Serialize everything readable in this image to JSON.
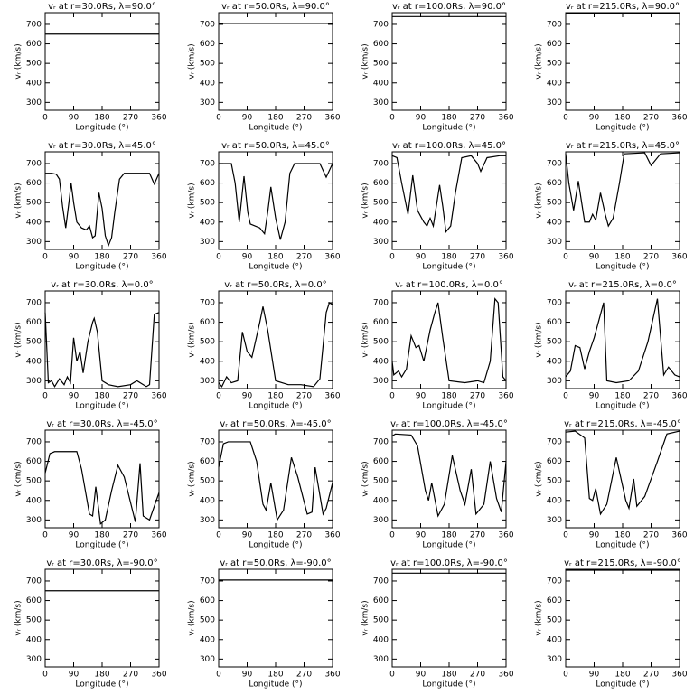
{
  "chart_data": [
    {
      "type": "line",
      "title": "vᵣ at r=30.0Rs, λ=90.0°",
      "xlabel": "Longitude (°)",
      "ylabel": "vᵣ (km/s)",
      "x": [
        0,
        360
      ],
      "values": [
        650,
        650
      ],
      "color": "#000000",
      "xlim": [
        0,
        360
      ],
      "ylim": [
        260,
        760
      ],
      "xticks": [
        0,
        90,
        180,
        270,
        360
      ],
      "yticks": [
        300,
        400,
        500,
        600,
        700
      ]
    },
    {
      "type": "line",
      "title": "vᵣ at r=50.0Rs, λ=90.0°",
      "xlabel": "Longitude (°)",
      "ylabel": "vᵣ (km/s)",
      "x": [
        0,
        360
      ],
      "values": [
        705,
        705
      ],
      "color": "#000000",
      "xlim": [
        0,
        360
      ],
      "ylim": [
        260,
        760
      ],
      "xticks": [
        0,
        90,
        180,
        270,
        360
      ],
      "yticks": [
        300,
        400,
        500,
        600,
        700
      ]
    },
    {
      "type": "line",
      "title": "vᵣ at r=100.0Rs, λ=90.0°",
      "xlabel": "Longitude (°)",
      "ylabel": "vᵣ (km/s)",
      "x": [
        0,
        360
      ],
      "values": [
        740,
        740
      ],
      "color": "#000000",
      "xlim": [
        0,
        360
      ],
      "ylim": [
        260,
        760
      ],
      "xticks": [
        0,
        90,
        180,
        270,
        360
      ],
      "yticks": [
        300,
        400,
        500,
        600,
        700
      ]
    },
    {
      "type": "line",
      "title": "vᵣ at r=215.0Rs, λ=90.0°",
      "xlabel": "Longitude (°)",
      "ylabel": "vᵣ (km/s)",
      "x": [
        0,
        360
      ],
      "values": [
        755,
        755
      ],
      "color": "#000000",
      "xlim": [
        0,
        360
      ],
      "ylim": [
        260,
        760
      ],
      "xticks": [
        0,
        90,
        180,
        270,
        360
      ],
      "yticks": [
        300,
        400,
        500,
        600,
        700
      ]
    },
    {
      "type": "line",
      "title": "vᵣ at r=30.0Rs, λ=45.0°",
      "xlabel": "Longitude (°)",
      "ylabel": "vᵣ (km/s)",
      "x": [
        0,
        20,
        35,
        45,
        55,
        65,
        75,
        82,
        90,
        100,
        115,
        130,
        140,
        150,
        158,
        170,
        180,
        190,
        200,
        210,
        220,
        235,
        250,
        300,
        330,
        345,
        360
      ],
      "values": [
        650,
        650,
        645,
        620,
        480,
        370,
        500,
        600,
        500,
        400,
        370,
        360,
        380,
        320,
        330,
        550,
        470,
        330,
        280,
        320,
        450,
        620,
        650,
        650,
        650,
        595,
        650
      ],
      "color": "#000000",
      "xlim": [
        0,
        360
      ],
      "ylim": [
        260,
        760
      ],
      "xticks": [
        0,
        90,
        180,
        270,
        360
      ],
      "yticks": [
        300,
        400,
        500,
        600,
        700
      ]
    },
    {
      "type": "line",
      "title": "vᵣ at r=50.0Rs, λ=45.0°",
      "xlabel": "Longitude (°)",
      "ylabel": "vᵣ (km/s)",
      "x": [
        0,
        40,
        52,
        65,
        80,
        92,
        100,
        115,
        130,
        145,
        155,
        165,
        180,
        195,
        210,
        225,
        240,
        320,
        340,
        360
      ],
      "values": [
        700,
        700,
        600,
        400,
        635,
        450,
        390,
        380,
        370,
        340,
        450,
        580,
        420,
        310,
        400,
        650,
        700,
        700,
        630,
        700
      ],
      "color": "#000000",
      "xlim": [
        0,
        360
      ],
      "ylim": [
        260,
        760
      ],
      "xticks": [
        0,
        90,
        180,
        270,
        360
      ],
      "yticks": [
        300,
        400,
        500,
        600,
        700
      ]
    },
    {
      "type": "line",
      "title": "vᵣ at r=100.0Rs, λ=45.0°",
      "xlabel": "Longitude (°)",
      "ylabel": "vᵣ (km/s)",
      "x": [
        0,
        15,
        30,
        50,
        65,
        80,
        100,
        110,
        120,
        130,
        150,
        160,
        170,
        185,
        200,
        220,
        250,
        270,
        280,
        300,
        340,
        360
      ],
      "values": [
        740,
        730,
        600,
        440,
        640,
        460,
        400,
        380,
        420,
        380,
        590,
        480,
        350,
        380,
        550,
        730,
        740,
        700,
        660,
        730,
        740,
        740
      ],
      "color": "#000000",
      "xlim": [
        0,
        360
      ],
      "ylim": [
        260,
        760
      ],
      "xticks": [
        0,
        90,
        180,
        270,
        360
      ],
      "yticks": [
        300,
        400,
        500,
        600,
        700
      ]
    },
    {
      "type": "line",
      "title": "vᵣ at r=215.0Rs, λ=45.0°",
      "xlabel": "Longitude (°)",
      "ylabel": "vᵣ (km/s)",
      "x": [
        0,
        10,
        25,
        40,
        60,
        75,
        85,
        95,
        110,
        125,
        135,
        150,
        170,
        185,
        250,
        270,
        300,
        360
      ],
      "values": [
        750,
        600,
        460,
        610,
        400,
        400,
        440,
        410,
        550,
        440,
        380,
        420,
        600,
        750,
        755,
        690,
        750,
        755
      ],
      "color": "#000000",
      "xlim": [
        0,
        360
      ],
      "ylim": [
        260,
        760
      ],
      "xticks": [
        0,
        90,
        180,
        270,
        360
      ],
      "yticks": [
        300,
        400,
        500,
        600,
        700
      ]
    },
    {
      "type": "line",
      "title": "vᵣ at r=30.0Rs, λ=0.0°",
      "xlabel": "Longitude (°)",
      "ylabel": "vᵣ (km/s)",
      "x": [
        0,
        10,
        20,
        30,
        45,
        60,
        70,
        80,
        90,
        100,
        110,
        120,
        135,
        150,
        155,
        165,
        180,
        200,
        230,
        270,
        290,
        320,
        330,
        345,
        360
      ],
      "values": [
        650,
        290,
        300,
        270,
        310,
        280,
        320,
        290,
        520,
        400,
        450,
        340,
        500,
        600,
        620,
        550,
        300,
        280,
        270,
        280,
        300,
        270,
        280,
        640,
        650
      ],
      "color": "#000000",
      "xlim": [
        0,
        360
      ],
      "ylim": [
        260,
        760
      ],
      "xticks": [
        0,
        90,
        180,
        270,
        360
      ],
      "yticks": [
        300,
        400,
        500,
        600,
        700
      ]
    },
    {
      "type": "line",
      "title": "vᵣ at r=50.0Rs, λ=0.0°",
      "xlabel": "Longitude (°)",
      "ylabel": "vᵣ (km/s)",
      "x": [
        0,
        10,
        25,
        40,
        60,
        75,
        90,
        105,
        130,
        140,
        155,
        180,
        220,
        260,
        300,
        320,
        340,
        350,
        360
      ],
      "values": [
        290,
        270,
        320,
        290,
        300,
        550,
        450,
        420,
        600,
        680,
        560,
        300,
        280,
        280,
        270,
        310,
        650,
        700,
        690
      ],
      "color": "#000000",
      "xlim": [
        0,
        360
      ],
      "ylim": [
        260,
        760
      ],
      "xticks": [
        0,
        90,
        180,
        270,
        360
      ],
      "yticks": [
        300,
        400,
        500,
        600,
        700
      ]
    },
    {
      "type": "line",
      "title": "vᵣ at r=100.0Rs, λ=0.0°",
      "xlabel": "Longitude (°)",
      "ylabel": "vᵣ (km/s)",
      "x": [
        0,
        5,
        20,
        30,
        45,
        60,
        75,
        85,
        100,
        120,
        135,
        145,
        160,
        180,
        230,
        270,
        290,
        310,
        325,
        335,
        350,
        360
      ],
      "values": [
        400,
        330,
        350,
        320,
        360,
        530,
        470,
        480,
        400,
        560,
        650,
        700,
        520,
        300,
        290,
        300,
        290,
        400,
        720,
        700,
        320,
        300
      ],
      "color": "#000000",
      "xlim": [
        0,
        360
      ],
      "ylim": [
        260,
        760
      ],
      "xticks": [
        0,
        90,
        180,
        270,
        360
      ],
      "yticks": [
        300,
        400,
        500,
        600,
        700
      ]
    },
    {
      "type": "line",
      "title": "vᵣ at r=215.0Rs, λ=0.0°",
      "xlabel": "Longitude (°)",
      "ylabel": "vᵣ (km/s)",
      "x": [
        0,
        15,
        30,
        45,
        60,
        75,
        90,
        110,
        120,
        130,
        160,
        200,
        230,
        260,
        290,
        310,
        325,
        345,
        360
      ],
      "values": [
        320,
        350,
        480,
        470,
        360,
        450,
        520,
        640,
        700,
        300,
        290,
        300,
        350,
        500,
        720,
        330,
        370,
        330,
        320
      ],
      "color": "#000000",
      "xlim": [
        0,
        360
      ],
      "ylim": [
        260,
        760
      ],
      "xticks": [
        0,
        90,
        180,
        270,
        360
      ],
      "yticks": [
        300,
        400,
        500,
        600,
        700
      ]
    },
    {
      "type": "line",
      "title": "vᵣ at r=30.0Rs, λ=-45.0°",
      "xlabel": "Longitude (°)",
      "ylabel": "vᵣ (km/s)",
      "x": [
        0,
        15,
        30,
        100,
        115,
        140,
        150,
        160,
        175,
        190,
        210,
        230,
        250,
        285,
        300,
        310,
        330,
        360
      ],
      "values": [
        540,
        640,
        650,
        650,
        560,
        330,
        320,
        470,
        280,
        300,
        450,
        580,
        520,
        290,
        590,
        320,
        300,
        440
      ],
      "color": "#000000",
      "xlim": [
        0,
        360
      ],
      "ylim": [
        260,
        760
      ],
      "xticks": [
        0,
        90,
        180,
        270,
        360
      ],
      "yticks": [
        300,
        400,
        500,
        600,
        700
      ]
    },
    {
      "type": "line",
      "title": "vᵣ at r=50.0Rs, λ=-45.0°",
      "xlabel": "Longitude (°)",
      "ylabel": "vᵣ (km/s)",
      "x": [
        0,
        15,
        30,
        100,
        120,
        140,
        150,
        165,
        185,
        205,
        230,
        250,
        280,
        295,
        305,
        330,
        340,
        360
      ],
      "values": [
        570,
        690,
        700,
        700,
        600,
        380,
        350,
        490,
        300,
        350,
        620,
        520,
        330,
        340,
        570,
        330,
        360,
        490
      ],
      "color": "#000000",
      "xlim": [
        0,
        360
      ],
      "ylim": [
        260,
        760
      ],
      "xticks": [
        0,
        90,
        180,
        270,
        360
      ],
      "yticks": [
        300,
        400,
        500,
        600,
        700
      ]
    },
    {
      "type": "line",
      "title": "vᵣ at r=100.0Rs, λ=-45.0°",
      "xlabel": "Longitude (°)",
      "ylabel": "vᵣ (km/s)",
      "x": [
        0,
        10,
        60,
        80,
        105,
        115,
        125,
        145,
        165,
        190,
        215,
        230,
        250,
        265,
        290,
        310,
        330,
        345,
        360
      ],
      "values": [
        730,
        740,
        735,
        680,
        450,
        400,
        490,
        320,
        380,
        630,
        450,
        380,
        560,
        330,
        380,
        600,
        410,
        340,
        600
      ],
      "color": "#000000",
      "xlim": [
        0,
        360
      ],
      "ylim": [
        260,
        760
      ],
      "xticks": [
        0,
        90,
        180,
        270,
        360
      ],
      "yticks": [
        300,
        400,
        500,
        600,
        700
      ]
    },
    {
      "type": "line",
      "title": "vᵣ at r=215.0Rs, λ=-45.0°",
      "xlabel": "Longitude (°)",
      "ylabel": "vᵣ (km/s)",
      "x": [
        0,
        30,
        60,
        75,
        85,
        95,
        110,
        130,
        160,
        190,
        200,
        215,
        225,
        250,
        290,
        320,
        360
      ],
      "values": [
        750,
        755,
        720,
        410,
        400,
        460,
        330,
        380,
        620,
        400,
        360,
        510,
        370,
        420,
        600,
        740,
        755
      ],
      "color": "#000000",
      "xlim": [
        0,
        360
      ],
      "ylim": [
        260,
        760
      ],
      "xticks": [
        0,
        90,
        180,
        270,
        360
      ],
      "yticks": [
        300,
        400,
        500,
        600,
        700
      ]
    },
    {
      "type": "line",
      "title": "vᵣ at r=30.0Rs, λ=-90.0°",
      "xlabel": "Longitude (°)",
      "ylabel": "vᵣ (km/s)",
      "x": [
        0,
        360
      ],
      "values": [
        650,
        650
      ],
      "color": "#000000",
      "xlim": [
        0,
        360
      ],
      "ylim": [
        260,
        760
      ],
      "xticks": [
        0,
        90,
        180,
        270,
        360
      ],
      "yticks": [
        300,
        400,
        500,
        600,
        700
      ]
    },
    {
      "type": "line",
      "title": "vᵣ at r=50.0Rs, λ=-90.0°",
      "xlabel": "Longitude (°)",
      "ylabel": "vᵣ (km/s)",
      "x": [
        0,
        360
      ],
      "values": [
        705,
        705
      ],
      "color": "#000000",
      "xlim": [
        0,
        360
      ],
      "ylim": [
        260,
        760
      ],
      "xticks": [
        0,
        90,
        180,
        270,
        360
      ],
      "yticks": [
        300,
        400,
        500,
        600,
        700
      ]
    },
    {
      "type": "line",
      "title": "vᵣ at r=100.0Rs, λ=-90.0°",
      "xlabel": "Longitude (°)",
      "ylabel": "vᵣ (km/s)",
      "x": [
        0,
        360
      ],
      "values": [
        740,
        740
      ],
      "color": "#000000",
      "xlim": [
        0,
        360
      ],
      "ylim": [
        260,
        760
      ],
      "xticks": [
        0,
        90,
        180,
        270,
        360
      ],
      "yticks": [
        300,
        400,
        500,
        600,
        700
      ]
    },
    {
      "type": "line",
      "title": "vᵣ at r=215.0Rs, λ=-90.0°",
      "xlabel": "Longitude (°)",
      "ylabel": "vᵣ (km/s)",
      "x": [
        0,
        360
      ],
      "values": [
        755,
        755
      ],
      "color": "#000000",
      "xlim": [
        0,
        360
      ],
      "ylim": [
        260,
        760
      ],
      "xticks": [
        0,
        90,
        180,
        270,
        360
      ],
      "yticks": [
        300,
        400,
        500,
        600,
        700
      ]
    }
  ]
}
